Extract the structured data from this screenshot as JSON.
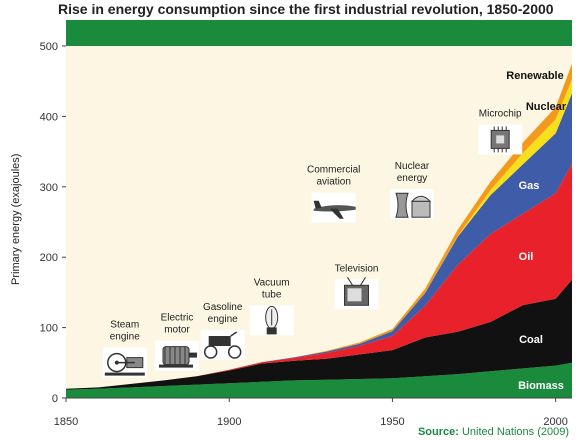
{
  "chart_data": {
    "type": "area",
    "stacked": true,
    "title": "Rise in energy consumption since the first industrial revolution, 1850-2000",
    "ylabel": "Primary energy (exajoules)",
    "xlim": [
      1850,
      2005
    ],
    "ylim": [
      0,
      500
    ],
    "xticks": [
      1850,
      1900,
      1950,
      2000
    ],
    "yticks": [
      0,
      100,
      200,
      300,
      400,
      500
    ],
    "grid": false,
    "x": [
      1850,
      1860,
      1870,
      1880,
      1890,
      1900,
      1910,
      1920,
      1930,
      1940,
      1950,
      1960,
      1970,
      1980,
      1990,
      2000,
      2005
    ],
    "series": [
      {
        "name": "Biomass",
        "color": "#1a8a3c",
        "values": [
          12,
          13,
          15,
          17,
          19,
          21,
          23,
          25,
          26,
          27,
          28,
          31,
          34,
          38,
          42,
          46,
          50
        ]
      },
      {
        "name": "Coal",
        "color": "#111111",
        "values": [
          1,
          2,
          5,
          8,
          12,
          18,
          26,
          28,
          30,
          35,
          40,
          55,
          60,
          70,
          90,
          95,
          118
        ]
      },
      {
        "name": "Oil",
        "color": "#e8212b",
        "values": [
          0,
          0,
          0,
          0,
          0,
          1,
          2,
          4,
          8,
          12,
          20,
          45,
          95,
          125,
          130,
          150,
          165
        ]
      },
      {
        "name": "Gas",
        "color": "#3f5ca8",
        "values": [
          0,
          0,
          0,
          0,
          0,
          0,
          0,
          1,
          2,
          3,
          7,
          18,
          40,
          55,
          70,
          85,
          100
        ]
      },
      {
        "name": "Nuclear",
        "color": "#f5e01b",
        "values": [
          0,
          0,
          0,
          0,
          0,
          0,
          0,
          0,
          0,
          0,
          0,
          0,
          1,
          7,
          16,
          20,
          20
        ]
      },
      {
        "name": "Renewable",
        "color": "#f39a1e",
        "values": [
          0,
          0,
          0,
          0,
          0,
          0,
          0,
          0,
          1,
          2,
          3,
          6,
          9,
          12,
          15,
          17,
          22
        ]
      }
    ],
    "annotations": [
      {
        "label": "Steam engine",
        "x": 1868,
        "y": 100,
        "icon": "steam-engine-icon"
      },
      {
        "label": "Electric motor",
        "x": 1884,
        "y": 110,
        "icon": "electric-motor-icon"
      },
      {
        "label": "Gasoline engine",
        "x": 1898,
        "y": 125,
        "icon": "car-icon"
      },
      {
        "label": "Vacuum tube",
        "x": 1913,
        "y": 160,
        "icon": "vacuum-tube-icon"
      },
      {
        "label": "Television",
        "x": 1939,
        "y": 180,
        "icon": "television-icon"
      },
      {
        "label": "Commercial aviation",
        "x": 1932,
        "y": 320,
        "icon": "airplane-icon"
      },
      {
        "label": "Nuclear energy",
        "x": 1956,
        "y": 325,
        "icon": "nuclear-plant-icon"
      },
      {
        "label": "Microchip",
        "x": 1983,
        "y": 400,
        "icon": "microchip-icon"
      }
    ],
    "source_label": "Source:",
    "source_text": "United Nations (2009)"
  }
}
